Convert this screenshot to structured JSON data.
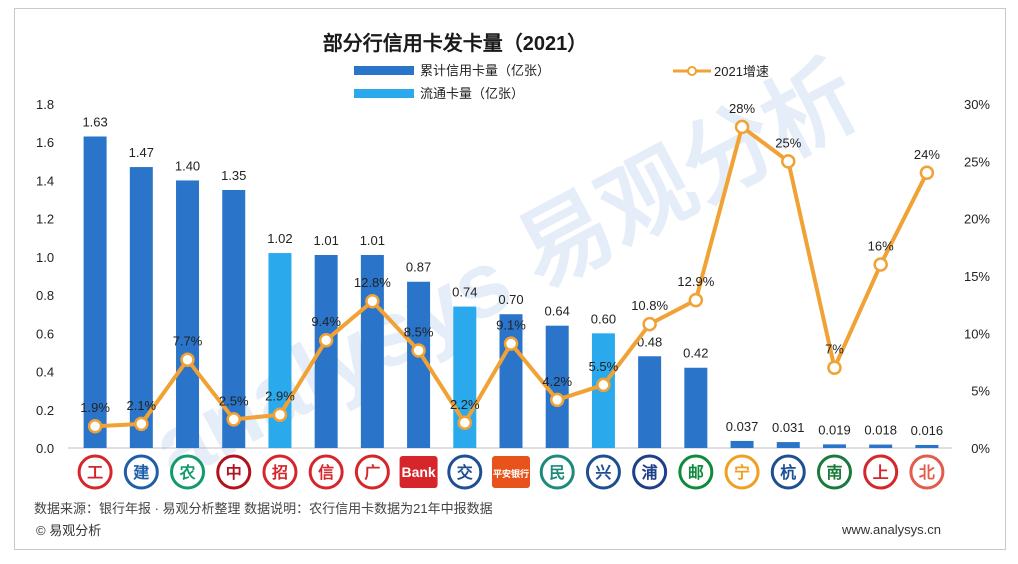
{
  "chart_data": {
    "type": "bar+line",
    "title": "部分行信用卡发卡量（2021）",
    "legend": {
      "cumulative": "累计信用卡量（亿张）",
      "circulating": "流通卡量（亿张）",
      "growth": "2021增速"
    },
    "y_left": {
      "min": 0,
      "max": 1.8,
      "step": 0.2,
      "ticks": [
        "0.0",
        "0.2",
        "0.4",
        "0.6",
        "0.8",
        "1.0",
        "1.2",
        "1.4",
        "1.6",
        "1.8"
      ]
    },
    "y_right": {
      "min": 0,
      "max": 30,
      "step": 5,
      "ticks": [
        "0%",
        "5%",
        "10%",
        "15%",
        "20%",
        "25%",
        "30%"
      ]
    },
    "banks": [
      {
        "name": "工商银行",
        "logo": "工",
        "logo_color": "#d6262b",
        "value": 1.63,
        "value_label": "1.63",
        "kind": "cumulative",
        "growth": 1.9,
        "growth_label": "1.9%"
      },
      {
        "name": "建设银行",
        "logo": "建",
        "logo_color": "#1e5ea8",
        "value": 1.47,
        "value_label": "1.47",
        "kind": "cumulative",
        "growth": 2.1,
        "growth_label": "2.1%"
      },
      {
        "name": "农业银行",
        "logo": "农",
        "logo_color": "#129a6b",
        "value": 1.4,
        "value_label": "1.40",
        "kind": "cumulative",
        "growth": 7.7,
        "growth_label": "7.7%"
      },
      {
        "name": "中国银行",
        "logo": "中",
        "logo_color": "#b1121d",
        "value": 1.35,
        "value_label": "1.35",
        "kind": "cumulative",
        "growth": 2.5,
        "growth_label": "2.5%"
      },
      {
        "name": "招商银行",
        "logo": "招",
        "logo_color": "#d6262b",
        "value": 1.02,
        "value_label": "1.02",
        "kind": "circulating",
        "growth": 2.9,
        "growth_label": "2.9%"
      },
      {
        "name": "中信银行",
        "logo": "信",
        "logo_color": "#d6262b",
        "value": 1.01,
        "value_label": "1.01",
        "kind": "cumulative",
        "growth": 9.4,
        "growth_label": "9.4%"
      },
      {
        "name": "广发银行",
        "logo": "广",
        "logo_color": "#d6262b",
        "value": 1.01,
        "value_label": "1.01",
        "kind": "cumulative",
        "growth": 12.8,
        "growth_label": "12.8%"
      },
      {
        "name": "光大银行",
        "logo": "Bank",
        "logo_color": "#d6262b",
        "value": 0.87,
        "value_label": "0.87",
        "kind": "cumulative",
        "growth": 8.5,
        "growth_label": "8.5%"
      },
      {
        "name": "交通银行",
        "logo": "交",
        "logo_color": "#1e4f93",
        "value": 0.74,
        "value_label": "0.74",
        "kind": "circulating",
        "growth": 2.2,
        "growth_label": "2.2%"
      },
      {
        "name": "平安银行",
        "logo": "平安银行",
        "logo_color": "#e8531c",
        "value": 0.7,
        "value_label": "0.70",
        "kind": "cumulative",
        "growth": 9.1,
        "growth_label": "9.1%"
      },
      {
        "name": "民生银行",
        "logo": "民",
        "logo_color": "#1d8a7a",
        "value": 0.64,
        "value_label": "0.64",
        "kind": "cumulative",
        "growth": 4.2,
        "growth_label": "4.2%"
      },
      {
        "name": "兴业银行",
        "logo": "兴",
        "logo_color": "#1e4f93",
        "value": 0.6,
        "value_label": "0.60",
        "kind": "circulating",
        "growth": 5.5,
        "growth_label": "5.5%"
      },
      {
        "name": "浦发银行",
        "logo": "浦",
        "logo_color": "#1e3f8a",
        "value": 0.48,
        "value_label": "0.48",
        "kind": "cumulative",
        "growth": 10.8,
        "growth_label": "10.8%"
      },
      {
        "name": "邮储银行",
        "logo": "邮",
        "logo_color": "#0f8a3c",
        "value": 0.42,
        "value_label": "0.42",
        "kind": "cumulative",
        "growth": 12.9,
        "growth_label": "12.9%"
      },
      {
        "name": "宁波银行",
        "logo": "宁",
        "logo_color": "#f0a020",
        "value": 0.037,
        "value_label": "0.037",
        "kind": "cumulative",
        "growth": 28,
        "growth_label": "28%"
      },
      {
        "name": "杭州银行",
        "logo": "杭",
        "logo_color": "#1e4f93",
        "value": 0.031,
        "value_label": "0.031",
        "kind": "cumulative",
        "growth": 25,
        "growth_label": "25%"
      },
      {
        "name": "南京银行",
        "logo": "南",
        "logo_color": "#1a7a3a",
        "value": 0.019,
        "value_label": "0.019",
        "kind": "cumulative",
        "growth": 7,
        "growth_label": "7%"
      },
      {
        "name": "上海银行",
        "logo": "上",
        "logo_color": "#d6262b",
        "value": 0.018,
        "value_label": "0.018",
        "kind": "cumulative",
        "growth": 16,
        "growth_label": "16%"
      },
      {
        "name": "北京银行",
        "logo": "北",
        "logo_color": "#e35b4a",
        "value": 0.016,
        "value_label": "0.016",
        "kind": "cumulative",
        "growth": 24,
        "growth_label": "24%"
      }
    ],
    "colors": {
      "cumulative": "#2a74c9",
      "circulating": "#2aa9ec",
      "growth": "#f0a235",
      "marker_fill": "#ffffff"
    },
    "watermark": "analysys 易观分析"
  },
  "footer": {
    "note": "数据来源：银行年报 · 易观分析整理  数据说明：农行信用卡数据为21年中报数据",
    "copyright": "© 易观分析",
    "website": "www.analysys.cn"
  }
}
